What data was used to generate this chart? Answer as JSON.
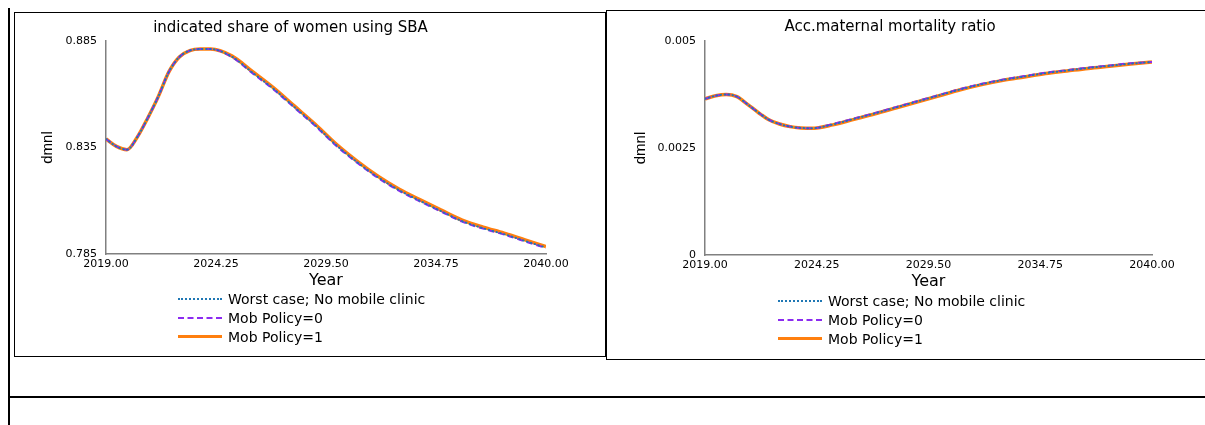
{
  "chart_data": [
    {
      "type": "line",
      "title": "indicated share of women using SBA",
      "xlabel": "Year",
      "ylabel": "dmnl",
      "x": [
        2019,
        2019.5,
        2020,
        2020.5,
        2021,
        2021.5,
        2022,
        2022.5,
        2023,
        2023.5,
        2024,
        2025,
        2026,
        2027,
        2028,
        2029,
        2030,
        2031,
        2032,
        2033,
        2034,
        2035,
        2036,
        2037,
        2038,
        2039,
        2040
      ],
      "series": [
        {
          "name": "Worst case; No mobile clinic",
          "color": "#1f77b4",
          "line_style": "dotted",
          "values": [
            0.839,
            0.8355,
            0.834,
            0.84,
            0.849,
            0.859,
            0.8705,
            0.8775,
            0.8805,
            0.8812,
            0.8812,
            0.8777,
            0.8701,
            0.8625,
            0.8539,
            0.8453,
            0.836,
            0.828,
            0.8209,
            0.8149,
            0.8099,
            0.8051,
            0.8004,
            0.7971,
            0.7943,
            0.7911,
            0.788
          ]
        },
        {
          "name": "Mob Policy=0",
          "color": "#8c2bf0",
          "line_style": "dashed",
          "values": [
            0.839,
            0.8355,
            0.834,
            0.84,
            0.849,
            0.859,
            0.8705,
            0.8775,
            0.8805,
            0.8812,
            0.8812,
            0.8775,
            0.8698,
            0.8622,
            0.8536,
            0.845,
            0.8357,
            0.8277,
            0.8206,
            0.8146,
            0.8096,
            0.8049,
            0.8002,
            0.7969,
            0.7941,
            0.7909,
            0.7878
          ]
        },
        {
          "name": "Mob Policy=1",
          "color": "#ff7f0e",
          "line_style": "solid",
          "values": [
            0.839,
            0.8355,
            0.834,
            0.84,
            0.849,
            0.859,
            0.8705,
            0.8775,
            0.8805,
            0.8812,
            0.8812,
            0.878,
            0.8706,
            0.863,
            0.8544,
            0.8458,
            0.8365,
            0.8285,
            0.8214,
            0.8154,
            0.8104,
            0.8056,
            0.8009,
            0.7976,
            0.7948,
            0.7916,
            0.7885
          ]
        }
      ],
      "xlim": [
        2019,
        2040
      ],
      "xticks": [
        {
          "value": 2019,
          "label": "2019.00"
        },
        {
          "value": 2024.25,
          "label": "2024.25"
        },
        {
          "value": 2029.5,
          "label": "2029.50"
        },
        {
          "value": 2034.75,
          "label": "2034.75"
        },
        {
          "value": 2040,
          "label": "2040.00"
        }
      ],
      "ylim": [
        0.785,
        0.885
      ],
      "yticks": [
        0.785,
        0.835,
        0.885
      ],
      "legend": "bottom"
    },
    {
      "type": "line",
      "title": "Acc.maternal mortality ratio",
      "xlabel": "Year",
      "ylabel": "dmnl",
      "x": [
        2019,
        2019.5,
        2020,
        2020.5,
        2021,
        2021.5,
        2022,
        2022.5,
        2023,
        2023.5,
        2024,
        2025,
        2026,
        2027,
        2028,
        2029,
        2030,
        2031,
        2032,
        2033,
        2034,
        2035,
        2036,
        2037,
        2038,
        2039,
        2040
      ],
      "series": [
        {
          "name": "Worst case; No mobile clinic",
          "color": "#1f77b4",
          "line_style": "dotted",
          "values": [
            0.00365,
            0.00372,
            0.00375,
            0.0037,
            0.00352,
            0.00333,
            0.00316,
            0.00306,
            0.003,
            0.00297,
            0.00296,
            0.00305,
            0.00318,
            0.00331,
            0.00345,
            0.00359,
            0.00373,
            0.00387,
            0.00399,
            0.00409,
            0.00417,
            0.00425,
            0.00431,
            0.00437,
            0.00442,
            0.00447,
            0.00451
          ]
        },
        {
          "name": "Mob Policy=0",
          "color": "#8c2bf0",
          "line_style": "dashed",
          "values": [
            0.00365,
            0.00372,
            0.00375,
            0.0037,
            0.00352,
            0.00333,
            0.00316,
            0.00306,
            0.003,
            0.00297,
            0.00296,
            0.00306,
            0.00319,
            0.00332,
            0.00346,
            0.0036,
            0.00374,
            0.00388,
            0.004,
            0.0041,
            0.00418,
            0.00426,
            0.00432,
            0.00438,
            0.00443,
            0.00448,
            0.00451
          ]
        },
        {
          "name": "Mob Policy=1",
          "color": "#ff7f0e",
          "line_style": "solid",
          "values": [
            0.00365,
            0.00372,
            0.00375,
            0.0037,
            0.00352,
            0.00333,
            0.00316,
            0.00306,
            0.003,
            0.00297,
            0.00296,
            0.00304,
            0.00317,
            0.0033,
            0.00344,
            0.00358,
            0.00372,
            0.00386,
            0.00398,
            0.00408,
            0.00416,
            0.00424,
            0.0043,
            0.00436,
            0.00441,
            0.00446,
            0.00451
          ]
        }
      ],
      "xlim": [
        2019,
        2040
      ],
      "xticks": [
        {
          "value": 2019,
          "label": "2019.00"
        },
        {
          "value": 2024.25,
          "label": "2024.25"
        },
        {
          "value": 2029.5,
          "label": "2029.50"
        },
        {
          "value": 2034.75,
          "label": "2034.75"
        },
        {
          "value": 2040,
          "label": "2040.00"
        }
      ],
      "ylim": [
        0,
        0.005
      ],
      "yticks": [
        0,
        0.0025,
        0.005
      ],
      "legend": "bottom"
    }
  ]
}
